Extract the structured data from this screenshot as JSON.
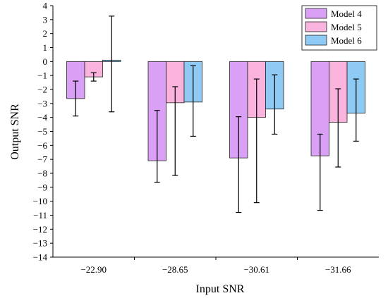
{
  "chart_data": {
    "type": "bar",
    "title": "",
    "xlabel": "Input SNR",
    "ylabel": "Output SNR",
    "categories": [
      "−22.90",
      "−28.65",
      "−30.61",
      "−31.66"
    ],
    "ylim": [
      -14,
      4
    ],
    "yticks": [
      4,
      3,
      2,
      1,
      0,
      -1,
      -2,
      -3,
      -4,
      -5,
      -6,
      -7,
      -8,
      -9,
      -10,
      -11,
      -12,
      -13,
      -14
    ],
    "ytick_labels": [
      "4",
      "3",
      "2",
      "1",
      "0",
      "−1",
      "−2",
      "−3",
      "−4",
      "−5",
      "−6",
      "−7",
      "−8",
      "−9",
      "−10",
      "−11",
      "−12",
      "−13",
      "−14"
    ],
    "grid": false,
    "legend_position": "top-right",
    "series": [
      {
        "name": "Model 4",
        "color": "#d9a0f5",
        "values": [
          -2.65,
          -7.1,
          -6.9,
          -6.75
        ],
        "error_low": [
          -3.9,
          -8.65,
          -10.8,
          -10.65
        ],
        "error_high": [
          -1.4,
          -3.5,
          -3.95,
          -5.2
        ]
      },
      {
        "name": "Model 5",
        "color": "#f9b3dc",
        "values": [
          -1.1,
          -2.95,
          -4.0,
          -4.35
        ],
        "error_low": [
          -1.4,
          -8.15,
          -10.1,
          -7.55
        ],
        "error_high": [
          -0.8,
          -1.8,
          -1.25,
          -1.95
        ]
      },
      {
        "name": "Model 6",
        "color": "#8ecaf3",
        "values": [
          0.1,
          -2.9,
          -3.4,
          -3.7
        ],
        "error_low": [
          -3.6,
          -5.35,
          -5.2,
          -5.7
        ],
        "error_high": [
          3.25,
          -0.3,
          -0.95,
          -1.25
        ]
      }
    ]
  }
}
